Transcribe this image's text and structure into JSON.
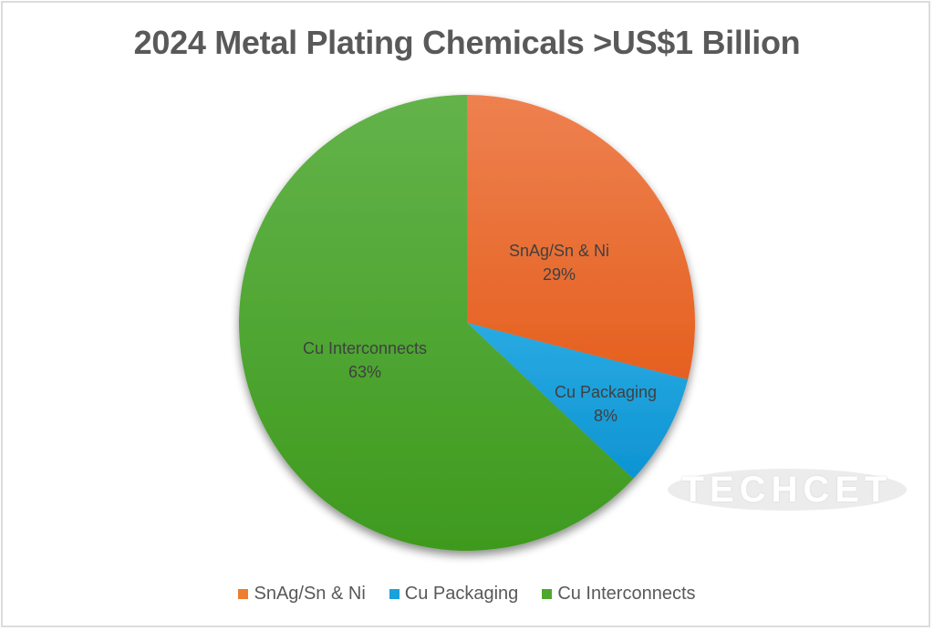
{
  "title": "2024 Metal Plating Chemicals >US$1 Billion",
  "watermark": "TECHCET",
  "slices": [
    {
      "name": "SnAg/Sn & Ni",
      "pct_label": "29%",
      "color": "#ED7D31"
    },
    {
      "name": "Cu Packaging",
      "pct_label": "8%",
      "color": "#1AA0DC"
    },
    {
      "name": "Cu Interconnects",
      "pct_label": "63%",
      "color": "#4EA72E"
    }
  ],
  "legend": [
    {
      "label": "SnAg/Sn & Ni",
      "color": "#ED7D31"
    },
    {
      "label": "Cu Packaging",
      "color": "#1AA0DC"
    },
    {
      "label": "Cu Interconnects",
      "color": "#4EA72E"
    }
  ],
  "chart_data": {
    "type": "pie",
    "title": "2024 Metal Plating Chemicals >US$1 Billion",
    "categories": [
      "SnAg/Sn & Ni",
      "Cu Packaging",
      "Cu Interconnects"
    ],
    "values": [
      29,
      8,
      63
    ],
    "unit": "%",
    "colors": [
      "#ED7D31",
      "#1AA0DC",
      "#4EA72E"
    ],
    "legend_position": "bottom",
    "data_labels": [
      "SnAg/Sn & Ni 29%",
      "Cu Packaging 8%",
      "Cu Interconnects 63%"
    ],
    "start_angle_deg": 0,
    "direction": "clockwise"
  }
}
